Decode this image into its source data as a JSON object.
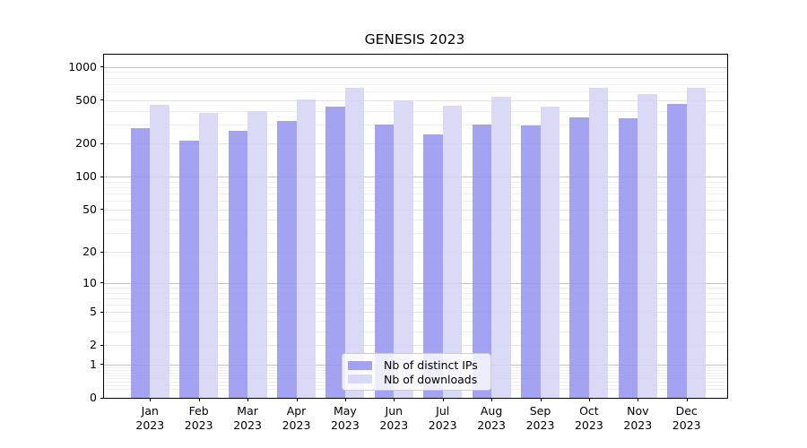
{
  "header": {
    "title": "GENESIS 2023"
  },
  "chart_data": {
    "type": "bar",
    "title": "GENESIS 2023",
    "categories": [
      "Jan",
      "Feb",
      "Mar",
      "Apr",
      "May",
      "Jun",
      "Jul",
      "Aug",
      "Sep",
      "Oct",
      "Nov",
      "Dec"
    ],
    "category_year": "2023",
    "series": [
      {
        "name": "Nb of distinct IPs",
        "color": "#9393ee",
        "alpha": 0.85,
        "values": [
          280,
          215,
          265,
          320,
          435,
          300,
          245,
          300,
          295,
          350,
          340,
          460
        ]
      },
      {
        "name": "Nb of downloads",
        "color": "#d4d4f6",
        "alpha": 0.85,
        "values": [
          450,
          380,
          400,
          510,
          650,
          495,
          440,
          535,
          435,
          650,
          565,
          650
        ]
      }
    ],
    "yscale": "log1p",
    "ylim": [
      0,
      1290
    ],
    "yticks": [
      0,
      1,
      2,
      5,
      10,
      20,
      50,
      100,
      200,
      500,
      1000
    ],
    "grid": true,
    "legend": {
      "position": "lower center"
    }
  }
}
